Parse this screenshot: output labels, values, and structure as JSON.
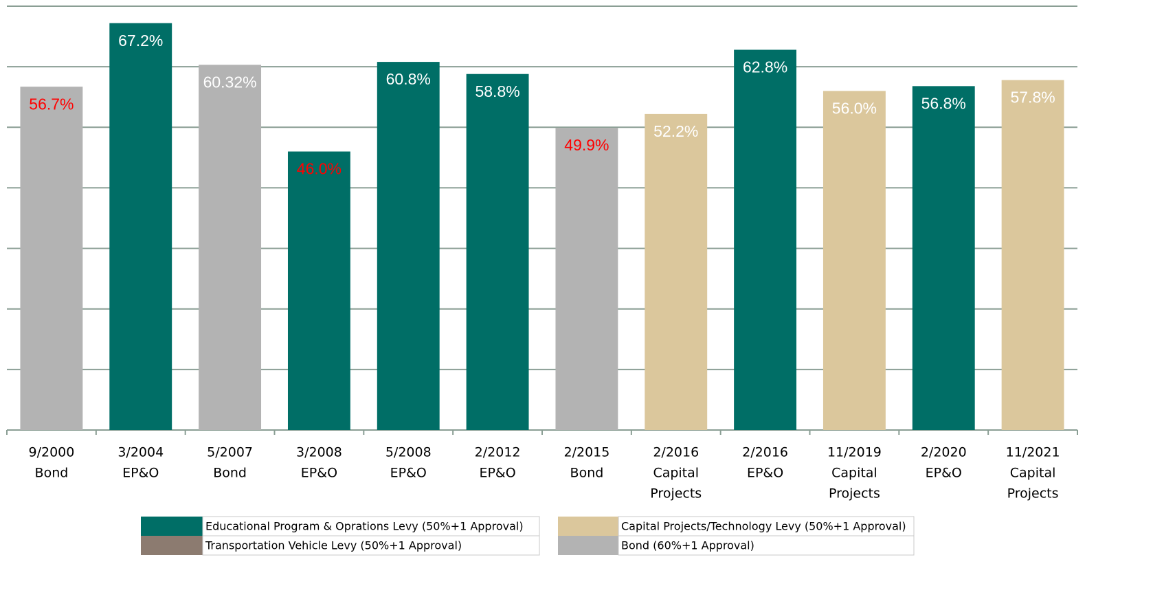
{
  "chart_data": {
    "type": "bar",
    "categories": [
      [
        "9/2000",
        "Bond"
      ],
      [
        "3/2004",
        "EP&O"
      ],
      [
        "5/2007",
        "Bond"
      ],
      [
        "3/2008",
        "EP&O"
      ],
      [
        "5/2008",
        "EP&O"
      ],
      [
        "2/2012",
        "EP&O"
      ],
      [
        "2/2015",
        "Bond"
      ],
      [
        "2/2016",
        "Capital",
        "Projects"
      ],
      [
        "2/2016",
        "EP&O"
      ],
      [
        "11/2019",
        "Capital",
        "Projects"
      ],
      [
        "2/2020",
        "EP&O"
      ],
      [
        "11/2021",
        "Capital",
        "Projects"
      ]
    ],
    "series": [
      {
        "name": "Educational Program & Oprations Levy (50%+1 Approval)",
        "color": "#006e66",
        "values": [
          null,
          67.2,
          null,
          46.0,
          60.8,
          58.8,
          null,
          null,
          62.8,
          null,
          56.8,
          null
        ],
        "value_labels": [
          null,
          "67.2%",
          null,
          "46.0%",
          "60.8%",
          "58.8%",
          null,
          null,
          "62.8%",
          null,
          "56.8%",
          null
        ]
      },
      {
        "name": "Capital Projects/Technology Levy (50%+1 Approval)",
        "color": "#dbc79c",
        "values": [
          null,
          null,
          null,
          null,
          null,
          null,
          null,
          52.2,
          null,
          56.0,
          null,
          57.8
        ],
        "value_labels": [
          null,
          null,
          null,
          null,
          null,
          null,
          null,
          "52.2%",
          null,
          "56.0%",
          null,
          "57.8%"
        ]
      },
      {
        "name": "Transportation Vehicle Levy (50%+1 Approval)",
        "color": "#8c7b70",
        "values": [
          null,
          null,
          null,
          null,
          null,
          null,
          null,
          null,
          null,
          null,
          null,
          null
        ]
      },
      {
        "name": "Bond (60%+1 Approval)",
        "color": "#b3b3b3",
        "values": [
          56.7,
          null,
          60.32,
          null,
          null,
          null,
          49.9,
          null,
          null,
          null,
          null,
          null
        ],
        "value_labels": [
          "56.7%",
          null,
          "60.32%",
          null,
          null,
          null,
          "49.9%",
          null,
          null,
          null,
          null,
          null
        ]
      }
    ],
    "value_label_colors": [
      "#ff0000",
      "#ffffff",
      "#ffffff",
      "#ff0000",
      "#ffffff",
      "#ffffff",
      "#ff0000",
      "#ffffff",
      "#ffffff",
      "#ffffff",
      "#ffffff",
      "#ffffff"
    ],
    "ylim": [
      0,
      70
    ],
    "yticks": [
      0,
      10,
      20,
      30,
      40,
      50,
      60,
      70
    ],
    "grid": true
  }
}
